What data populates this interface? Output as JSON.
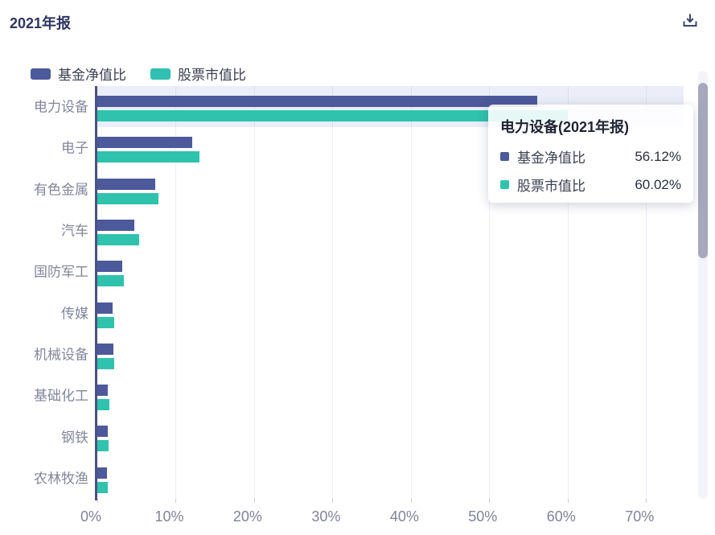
{
  "header": {
    "title": "2021年报"
  },
  "legend": {
    "items": [
      {
        "label": "基金净值比",
        "color": "#4c599b"
      },
      {
        "label": "股票市值比",
        "color": "#2fc0b2"
      }
    ]
  },
  "chart_data": {
    "type": "bar",
    "orientation": "horizontal",
    "title": "2021年报",
    "categories": [
      "电力设备",
      "电子",
      "有色金属",
      "汽车",
      "国防军工",
      "传媒",
      "机械设备",
      "基础化工",
      "钢铁",
      "农林牧渔"
    ],
    "series": [
      {
        "name": "基金净值比",
        "color": "#4c599b",
        "values": [
          56.12,
          12.1,
          7.4,
          4.7,
          3.2,
          2.0,
          2.1,
          1.3,
          1.3,
          1.2
        ]
      },
      {
        "name": "股票市值比",
        "color": "#2fc3ad",
        "values": [
          60.02,
          13.0,
          7.8,
          5.3,
          3.4,
          2.2,
          2.2,
          1.5,
          1.4,
          1.3
        ]
      }
    ],
    "x_ticks": [
      "0%",
      "10%",
      "20%",
      "30%",
      "40%",
      "50%",
      "60%",
      "70%"
    ],
    "x_tick_values": [
      0,
      10,
      20,
      30,
      40,
      50,
      60,
      70
    ],
    "xlim": [
      0,
      74.8
    ],
    "value_unit": "%",
    "grid": true,
    "legend_position": "top-left",
    "highlighted_category": "电力设备"
  },
  "tooltip": {
    "title": "电力设备(2021年报)",
    "rows": [
      {
        "label": "基金净值比",
        "value": "56.12%",
        "color": "#4c599b"
      },
      {
        "label": "股票市值比",
        "value": "60.02%",
        "color": "#2fc3ad"
      }
    ]
  },
  "colors": {
    "title_text": "#2f3561",
    "axis_line": "#4a5280",
    "grid_line": "#eceef6",
    "category_label": "#82869a",
    "x_tick_label": "#7f8498",
    "highlight_band": "rgba(98,120,200,0.13)",
    "scrollbar_thumb": "#a7a8bc",
    "download_icon": "#3d4470"
  }
}
